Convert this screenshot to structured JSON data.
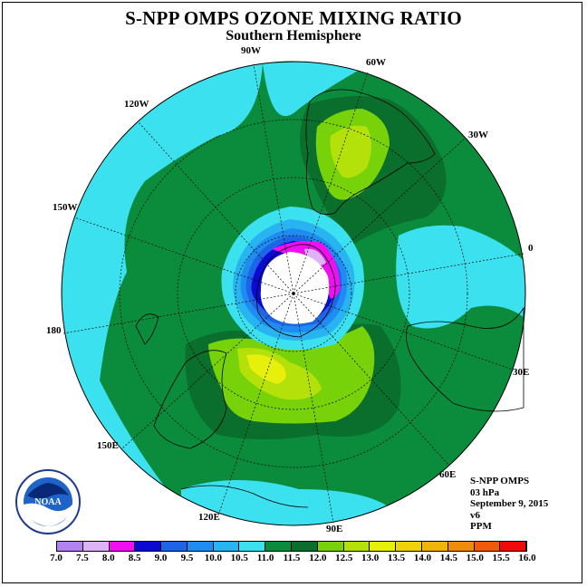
{
  "title": "S-NPP OMPS OZONE MIXING RATIO",
  "subtitle": "Southern Hemisphere",
  "longitude_labels": {
    "w90": "90W",
    "w60": "60W",
    "w30": "30W",
    "zero": "0",
    "w120": "120W",
    "w150": "150W",
    "lon180": "180",
    "e30": "30E",
    "e60": "60E",
    "e90": "90E",
    "e120": "120E",
    "e150": "150E"
  },
  "info": {
    "instrument": "S-NPP OMPS",
    "level": "03 hPa",
    "date": "September 9, 2015",
    "version": "v6",
    "units": "PPM"
  },
  "logo": {
    "text": "NOAA"
  },
  "colorbar": {
    "ticks": [
      "7.0",
      "7.5",
      "8.0",
      "8.5",
      "9.0",
      "9.5",
      "10.0",
      "10.5",
      "11.0",
      "11.5",
      "12.0",
      "12.5",
      "13.0",
      "13.5",
      "14.0",
      "14.5",
      "15.0",
      "15.5",
      "16.0"
    ],
    "colors": [
      "#b482f0",
      "#dcb4f5",
      "#f00ff0",
      "#0a0ad2",
      "#1e64e6",
      "#1e8cf0",
      "#28b4f0",
      "#3ce1f0",
      "#0a8c3c",
      "#0a6e2d",
      "#78d20a",
      "#b4e10a",
      "#e6f00a",
      "#f0d20a",
      "#f0b40a",
      "#f08c0a",
      "#f05a0a",
      "#f00a0a",
      "#8c5a3c"
    ]
  }
}
